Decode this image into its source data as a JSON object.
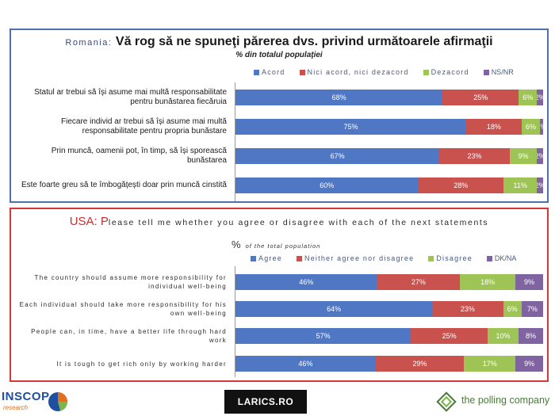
{
  "colors": {
    "agree": "#4f77c4",
    "neutral": "#c9524f",
    "disagree": "#9ec456",
    "dkna": "#8064a2"
  },
  "romania": {
    "title_prefix": "Romania:",
    "title_main": "Vă rog să ne spuneţi părerea dvs. privind următoarele afirmaţii",
    "subtitle": "% din totalul populaţiei",
    "legend": [
      "Acord",
      "Nici acord, nici dezacord",
      "Dezacord",
      "NS/NR"
    ],
    "rows": [
      {
        "label": "Statul ar trebui să își asume mai multă responsabilitate pentru bunăstarea fiecăruia",
        "labels": [
          "68%",
          "25%",
          "6%",
          "2%"
        ]
      },
      {
        "label": "Fiecare individ ar trebui să își asume mai multă responsabilitate pentru propria bunăstare",
        "labels": [
          "75%",
          "18%",
          "6%",
          "1%"
        ]
      },
      {
        "label": "Prin muncă, oamenii pot, în timp, să își sporească bunăstarea",
        "labels": [
          "67%",
          "23%",
          "9%",
          "2%"
        ]
      },
      {
        "label": "Este foarte greu să te îmbogățești doar prin muncă cinstită",
        "labels": [
          "60%",
          "28%",
          "11%",
          "2%"
        ]
      }
    ]
  },
  "usa": {
    "title_prefix": "USA: P",
    "title_main": "lease tell me whether you agree or disagree with each of the next statements",
    "subtitle_pct": "%",
    "subtitle": "of the total population",
    "legend": [
      "Agree",
      "Neither agree nor disagree",
      "Disagree",
      "DK/NA"
    ],
    "rows": [
      {
        "label": "The country should assume more responsibility for individual well-being",
        "labels": [
          "46%",
          "27%",
          "18%",
          "9%"
        ]
      },
      {
        "label": "Each individual should take more responsibility for his own well-being",
        "labels": [
          "64%",
          "23%",
          "6%",
          "7%"
        ]
      },
      {
        "label": "People can, in time, have a better life through hard work",
        "labels": [
          "57%",
          "25%",
          "10%",
          "8%"
        ]
      },
      {
        "label": "It is tough to get rich only by working harder",
        "labels": [
          "46%",
          "29%",
          "17%",
          "9%"
        ]
      }
    ]
  },
  "chart_data": [
    {
      "type": "bar",
      "stacked": true,
      "orientation": "horizontal",
      "title": "Romania: Vă rog să ne spuneţi părerea dvs. privind următoarele afirmaţii",
      "subtitle": "% din totalul populaţiei",
      "categories": [
        "Statul ar trebui să își asume mai multă responsabilitate pentru bunăstarea fiecăruia",
        "Fiecare individ ar trebui să își asume mai multă responsabilitate pentru propria bunăstare",
        "Prin muncă, oamenii pot, în timp, să își sporească bunăstarea",
        "Este foarte greu să te îmbogățești doar prin muncă cinstită"
      ],
      "series": [
        {
          "name": "Acord",
          "values": [
            68,
            75,
            67,
            60
          ]
        },
        {
          "name": "Nici acord, nici dezacord",
          "values": [
            25,
            18,
            23,
            28
          ]
        },
        {
          "name": "Dezacord",
          "values": [
            6,
            6,
            9,
            11
          ]
        },
        {
          "name": "NS/NR",
          "values": [
            2,
            1,
            2,
            2
          ]
        }
      ],
      "legend": "top"
    },
    {
      "type": "bar",
      "stacked": true,
      "orientation": "horizontal",
      "title": "USA: Please tell me whether you agree or disagree with each of the next statements",
      "subtitle": "% of the total population",
      "categories": [
        "The country should assume more responsibility for individual well-being",
        "Each individual should take more responsibility for his own well-being",
        "People can, in time, have a better life through hard work",
        "It is tough to get rich only by working harder"
      ],
      "series": [
        {
          "name": "Agree",
          "values": [
            46,
            64,
            57,
            46
          ]
        },
        {
          "name": "Neither agree nor disagree",
          "values": [
            27,
            23,
            25,
            29
          ]
        },
        {
          "name": "Disagree",
          "values": [
            18,
            6,
            10,
            17
          ]
        },
        {
          "name": "DK/NA",
          "values": [
            9,
            7,
            8,
            9
          ]
        }
      ],
      "legend": "top"
    }
  ],
  "logos": {
    "inscop": "INSCOP",
    "inscop_sub": "research",
    "larics": "LARICS.RO",
    "polling": "the polling company"
  }
}
